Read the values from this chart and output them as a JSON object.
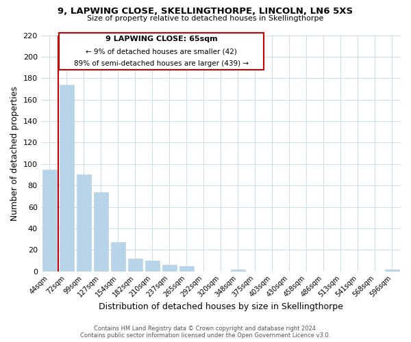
{
  "title": "9, LAPWING CLOSE, SKELLINGTHORPE, LINCOLN, LN6 5XS",
  "subtitle": "Size of property relative to detached houses in Skellingthorpe",
  "xlabel": "Distribution of detached houses by size in Skellingthorpe",
  "ylabel": "Number of detached properties",
  "bar_labels": [
    "44sqm",
    "72sqm",
    "99sqm",
    "127sqm",
    "154sqm",
    "182sqm",
    "210sqm",
    "237sqm",
    "265sqm",
    "292sqm",
    "320sqm",
    "348sqm",
    "375sqm",
    "403sqm",
    "430sqm",
    "458sqm",
    "486sqm",
    "513sqm",
    "541sqm",
    "568sqm",
    "596sqm"
  ],
  "bar_heights": [
    95,
    174,
    90,
    74,
    27,
    12,
    10,
    6,
    5,
    0,
    0,
    2,
    0,
    0,
    0,
    0,
    0,
    0,
    0,
    0,
    2
  ],
  "bar_color": "#b8d4e8",
  "highlight_color": "#cc0000",
  "ylim": [
    0,
    220
  ],
  "yticks": [
    0,
    20,
    40,
    60,
    80,
    100,
    120,
    140,
    160,
    180,
    200,
    220
  ],
  "annotation_text_line1": "9 LAPWING CLOSE: 65sqm",
  "annotation_text_line2": "← 9% of detached houses are smaller (42)",
  "annotation_text_line3": "89% of semi-detached houses are larger (439) →",
  "footer_line1": "Contains HM Land Registry data © Crown copyright and database right 2024.",
  "footer_line2": "Contains public sector information licensed under the Open Government Licence v3.0.",
  "grid_color": "#ccdde8",
  "background_color": "#ffffff"
}
